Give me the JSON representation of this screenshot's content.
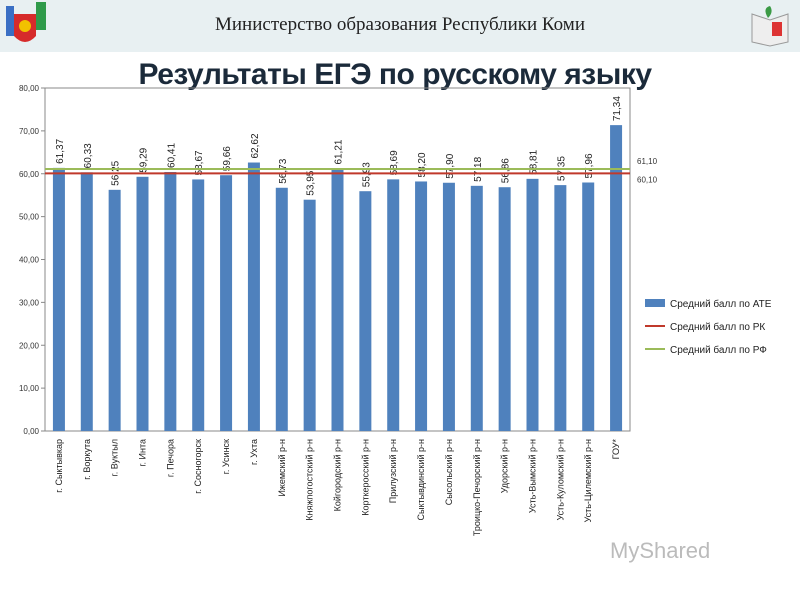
{
  "header": {
    "ministry": "Министерство  образования  Республики  Коми",
    "watermark": "MyShared"
  },
  "chart_data": {
    "type": "bar",
    "title": "Результаты ЕГЭ по русскому языку",
    "categories": [
      "г. Сыктывкар",
      "г. Воркута",
      "г. Вуктыл",
      "г. Инта",
      "г. Печора",
      "г. Сосногорск",
      "г. Усинск",
      "г. Ухта",
      "Ижемский р-н",
      "Княжпогостский р-н",
      "Койгородский р-н",
      "Корткеросский р-н",
      "Прилузский р-н",
      "Сыктывдинский р-н",
      "Сысольский р-н",
      "Троицко-Печорский р-н",
      "Удорский р-н",
      "Усть-Вымский р-н",
      "Усть-Куломский р-н",
      "Усть-Цилемский р-н",
      "ГОУ*"
    ],
    "values": [
      61.37,
      60.33,
      56.25,
      59.29,
      60.41,
      58.67,
      59.66,
      62.62,
      56.73,
      53.95,
      61.21,
      55.93,
      58.69,
      58.2,
      57.9,
      57.18,
      56.86,
      58.81,
      57.35,
      57.96,
      71.34
    ],
    "value_labels": [
      "61,37",
      "60,33",
      "56,25",
      "59,29",
      "60,41",
      "58,67",
      "59,66",
      "62,62",
      "56,73",
      "53,95",
      "61,21",
      "55,93",
      "58,69",
      "58,20",
      "57,90",
      "57,18",
      "56,86",
      "58,81",
      "57,35",
      "57,96",
      "71,34"
    ],
    "reference_lines": [
      {
        "name": "Средний балл по РК",
        "value": 60.1,
        "label": "60,10",
        "color": "#c0392b"
      },
      {
        "name": "Средний балл по РФ",
        "value": 61.1,
        "label": "61,10",
        "color": "#9bbb59"
      }
    ],
    "series_name": "Средний балл по АТЕ",
    "bar_color": "#4f81bd",
    "ylim": [
      0,
      80
    ],
    "yticks": [
      "0,00",
      "10,00",
      "20,00",
      "30,00",
      "40,00",
      "50,00",
      "60,00",
      "70,00",
      "80,00"
    ],
    "legend_position": "right"
  }
}
